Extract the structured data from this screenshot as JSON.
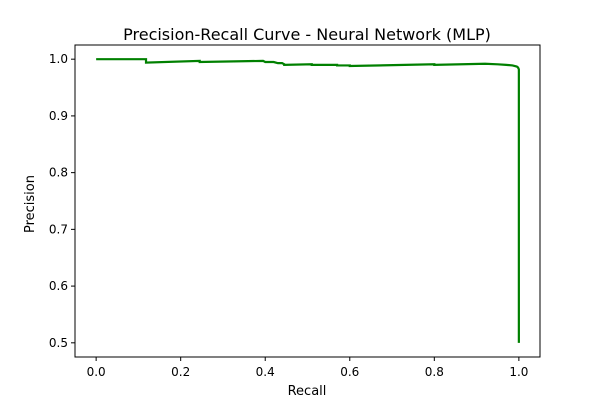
{
  "chart_data": {
    "type": "line",
    "title": "Precision-Recall Curve - Neural Network (MLP)",
    "xlabel": "Recall",
    "ylabel": "Precision",
    "xlim": [
      -0.05,
      1.05
    ],
    "ylim": [
      0.475,
      1.025
    ],
    "xticks": [
      0.0,
      0.2,
      0.4,
      0.6,
      0.8,
      1.0
    ],
    "xtick_labels": [
      "0.0",
      "0.2",
      "0.4",
      "0.6",
      "0.8",
      "1.0"
    ],
    "yticks": [
      0.5,
      0.6,
      0.7,
      0.8,
      0.9,
      1.0
    ],
    "ytick_labels": [
      "0.5",
      "0.6",
      "0.7",
      "0.8",
      "0.9",
      "1.0"
    ],
    "grid": false,
    "legend": false,
    "series": [
      {
        "color": "#008000",
        "x": [
          0.0,
          0.118,
          0.118,
          0.245,
          0.245,
          0.395,
          0.4,
          0.42,
          0.43,
          0.44,
          0.445,
          0.445,
          0.51,
          0.51,
          0.57,
          0.57,
          0.6,
          0.6,
          0.8,
          0.8,
          0.92,
          0.95,
          0.97,
          0.985,
          0.995,
          0.997,
          0.998,
          0.999,
          1.0,
          1.0
        ],
        "y": [
          1.0,
          1.0,
          0.994,
          0.997,
          0.995,
          0.997,
          0.995,
          0.995,
          0.993,
          0.993,
          0.991,
          0.99,
          0.991,
          0.99,
          0.99,
          0.989,
          0.989,
          0.988,
          0.991,
          0.99,
          0.992,
          0.991,
          0.99,
          0.989,
          0.987,
          0.986,
          0.985,
          0.984,
          0.982,
          0.5
        ]
      }
    ]
  }
}
